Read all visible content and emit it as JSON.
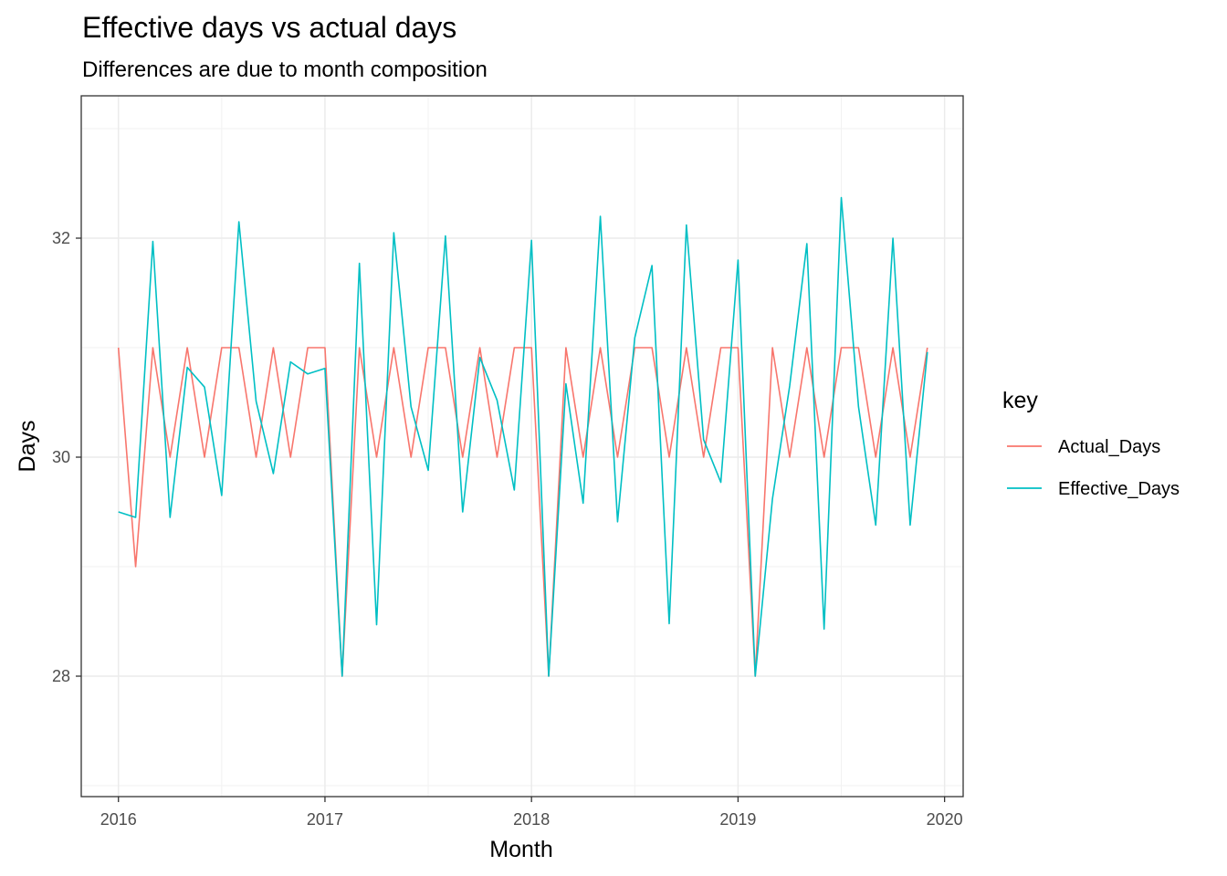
{
  "chart_data": {
    "type": "line",
    "title": "Effective days vs actual days",
    "subtitle": "Differences are due to month composition",
    "xlabel": "Month",
    "ylabel": "Days",
    "x_ticks": [
      "2016",
      "2017",
      "2018",
      "2019",
      "2020"
    ],
    "y_ticks": [
      "28",
      "30",
      "32"
    ],
    "xlim": [
      2015.82,
      2020.09
    ],
    "ylim": [
      26.9,
      33.3
    ],
    "grid": true,
    "legend": {
      "title": "key",
      "placement": "right"
    },
    "x": [
      2016.0,
      2016.0833,
      2016.1667,
      2016.25,
      2016.3333,
      2016.4167,
      2016.5,
      2016.5833,
      2016.6667,
      2016.75,
      2016.8333,
      2016.9167,
      2017.0,
      2017.0833,
      2017.1667,
      2017.25,
      2017.3333,
      2017.4167,
      2017.5,
      2017.5833,
      2017.6667,
      2017.75,
      2017.8333,
      2017.9167,
      2018.0,
      2018.0833,
      2018.1667,
      2018.25,
      2018.3333,
      2018.4167,
      2018.5,
      2018.5833,
      2018.6667,
      2018.75,
      2018.8333,
      2018.9167,
      2019.0,
      2019.0833,
      2019.1667,
      2019.25,
      2019.3333,
      2019.4167,
      2019.5,
      2019.5833,
      2019.6667,
      2019.75,
      2019.8333,
      2019.9167
    ],
    "series": [
      {
        "name": "Actual_Days",
        "color": "#F8766D",
        "values": [
          31,
          29,
          31,
          30,
          31,
          30,
          31,
          31,
          30,
          31,
          30,
          31,
          31,
          28,
          31,
          30,
          31,
          30,
          31,
          31,
          30,
          31,
          30,
          31,
          31,
          28,
          31,
          30,
          31,
          30,
          31,
          31,
          30,
          31,
          30,
          31,
          31,
          28,
          31,
          30,
          31,
          30,
          31,
          31,
          30,
          31,
          30,
          31
        ]
      },
      {
        "name": "Effective_Days",
        "color": "#00BFC4",
        "values": [
          29.5,
          29.45,
          31.97,
          29.45,
          30.82,
          30.64,
          29.65,
          32.15,
          30.51,
          29.85,
          30.87,
          30.76,
          30.81,
          28.0,
          31.77,
          28.47,
          32.05,
          30.46,
          29.88,
          32.02,
          29.5,
          30.91,
          30.52,
          29.7,
          31.98,
          28.0,
          30.67,
          29.58,
          32.2,
          29.41,
          31.09,
          31.75,
          28.48,
          32.12,
          30.16,
          29.77,
          31.8,
          28.0,
          29.62,
          30.65,
          31.95,
          28.43,
          32.37,
          30.46,
          29.38,
          32.0,
          29.38,
          30.96
        ]
      }
    ]
  }
}
